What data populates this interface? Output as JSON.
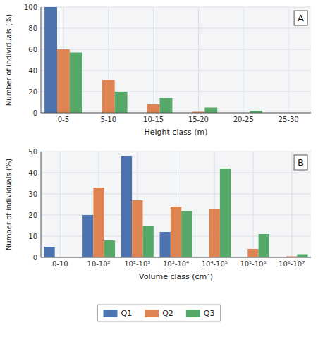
{
  "chart_data": [
    {
      "type": "bar",
      "title": "A",
      "xlabel": "Height class (m)",
      "ylabel": "Number of individuals (%)",
      "categories": [
        "0-5",
        "5-10",
        "10-15",
        "15-20",
        "20-25",
        "25-30"
      ],
      "series": [
        {
          "name": "Q1",
          "values": [
            100,
            0,
            0,
            0,
            0,
            0
          ]
        },
        {
          "name": "Q2",
          "values": [
            60,
            31,
            8,
            1,
            0,
            0
          ]
        },
        {
          "name": "Q3",
          "values": [
            57,
            20,
            14,
            5,
            2,
            0
          ]
        }
      ],
      "ylim": [
        0,
        100
      ],
      "yticks": [
        0,
        20,
        40,
        60,
        80,
        100
      ],
      "grid": true,
      "legend": "bottom"
    },
    {
      "type": "bar",
      "title": "B",
      "xlabel": "Volume class (cm³)",
      "ylabel": "Number of individuals (%)",
      "categories": [
        "0-10",
        "10-10²",
        "10²-10³",
        "10³-10⁴",
        "10⁴-10⁵",
        "10⁵-10⁶",
        "10⁶-10⁷"
      ],
      "series": [
        {
          "name": "Q1",
          "values": [
            5,
            20,
            48,
            12,
            0,
            0,
            0
          ]
        },
        {
          "name": "Q2",
          "values": [
            0,
            33,
            27,
            24,
            23,
            4,
            0.5
          ]
        },
        {
          "name": "Q3",
          "values": [
            0,
            8,
            15,
            22,
            42,
            11,
            1.5
          ]
        }
      ],
      "ylim": [
        0,
        50
      ],
      "yticks": [
        0,
        10,
        20,
        30,
        40,
        50
      ],
      "grid": true
    }
  ]
}
